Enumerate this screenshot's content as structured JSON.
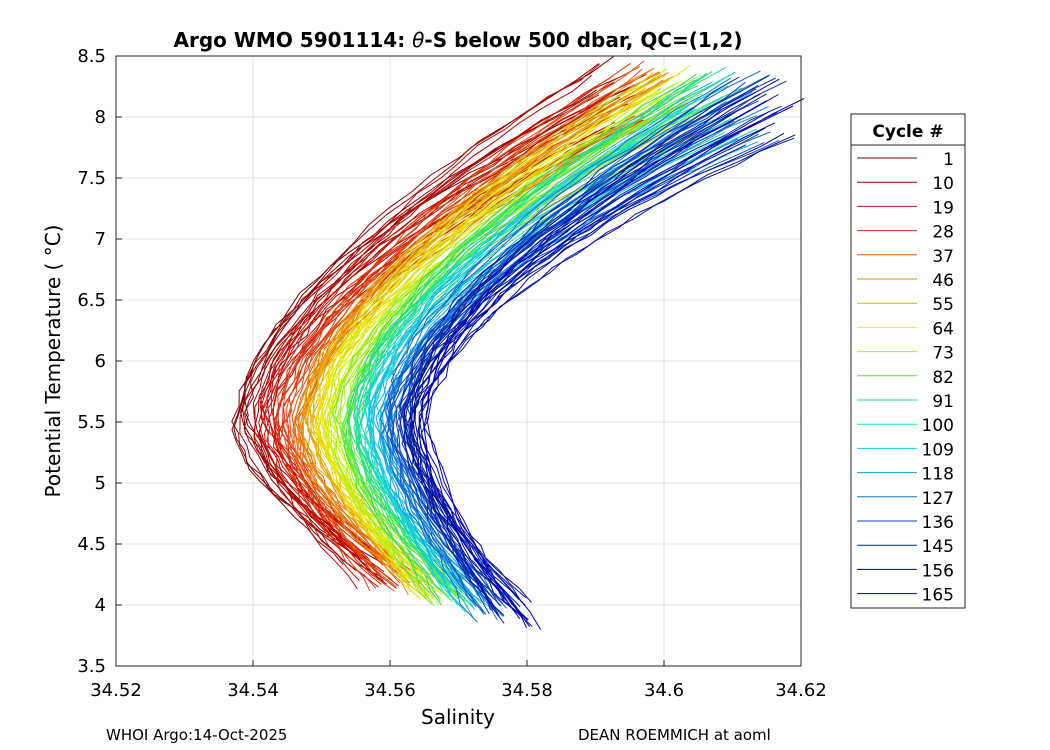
{
  "chart_data": {
    "type": "line",
    "title_prefix": "Argo WMO 5901114: ",
    "title_theta": "θ",
    "title_suffix": "-S below 500 dbar,  QC=(1,2)",
    "xlabel": "Salinity",
    "ylabel": "Potential Temperature ( °C)",
    "xlim": [
      34.52,
      34.62
    ],
    "ylim": [
      3.5,
      8.5
    ],
    "xticks": [
      "34.52",
      "34.54",
      "34.56",
      "34.58",
      "34.6",
      "34.62"
    ],
    "yticks": [
      "3.5",
      "4",
      "4.5",
      "5",
      "5.5",
      "6",
      "6.5",
      "7",
      "7.5",
      "8",
      "8.5"
    ],
    "grid": true,
    "legend_title": "Cycle #",
    "legend_position": "right",
    "legend": [
      {
        "label": "1",
        "color": "#800000"
      },
      {
        "label": "10",
        "color": "#a00000"
      },
      {
        "label": "19",
        "color": "#c81010"
      },
      {
        "label": "28",
        "color": "#e02a10"
      },
      {
        "label": "37",
        "color": "#e85a10"
      },
      {
        "label": "46",
        "color": "#e08a10"
      },
      {
        "label": "55",
        "color": "#d8b400"
      },
      {
        "label": "64",
        "color": "#f0f000"
      },
      {
        "label": "73",
        "color": "#b4f000"
      },
      {
        "label": "82",
        "color": "#60e030"
      },
      {
        "label": "91",
        "color": "#20e080"
      },
      {
        "label": "100",
        "color": "#10e0c0"
      },
      {
        "label": "109",
        "color": "#10c8f0"
      },
      {
        "label": "118",
        "color": "#10a0d0"
      },
      {
        "label": "127",
        "color": "#1070d0"
      },
      {
        "label": "136",
        "color": "#1040c0"
      },
      {
        "label": "145",
        "color": "#0020a0"
      },
      {
        "label": "156",
        "color": "#000080"
      },
      {
        "label": "165",
        "color": "#0000c0"
      }
    ],
    "series_shape": {
      "description": "Each cycle traces a C-shaped theta-S curve: salinity minimum near 5.5 C, rising salinity toward warmer and colder ends.",
      "min_salinity_start": 34.537,
      "min_salinity_end": 34.565,
      "top_salinity_start": 34.592,
      "top_salinity_end": 34.618,
      "top_temperature": 8.2,
      "bottom_salinity_start": 34.556,
      "bottom_salinity_end": 34.58,
      "bottom_temperature_start": 4.3,
      "bottom_temperature_end": 3.9,
      "min_temperature": 5.5
    }
  },
  "footer": {
    "left": "WHOI Argo:14-Oct-2025",
    "right": "DEAN ROEMMICH at aoml"
  }
}
